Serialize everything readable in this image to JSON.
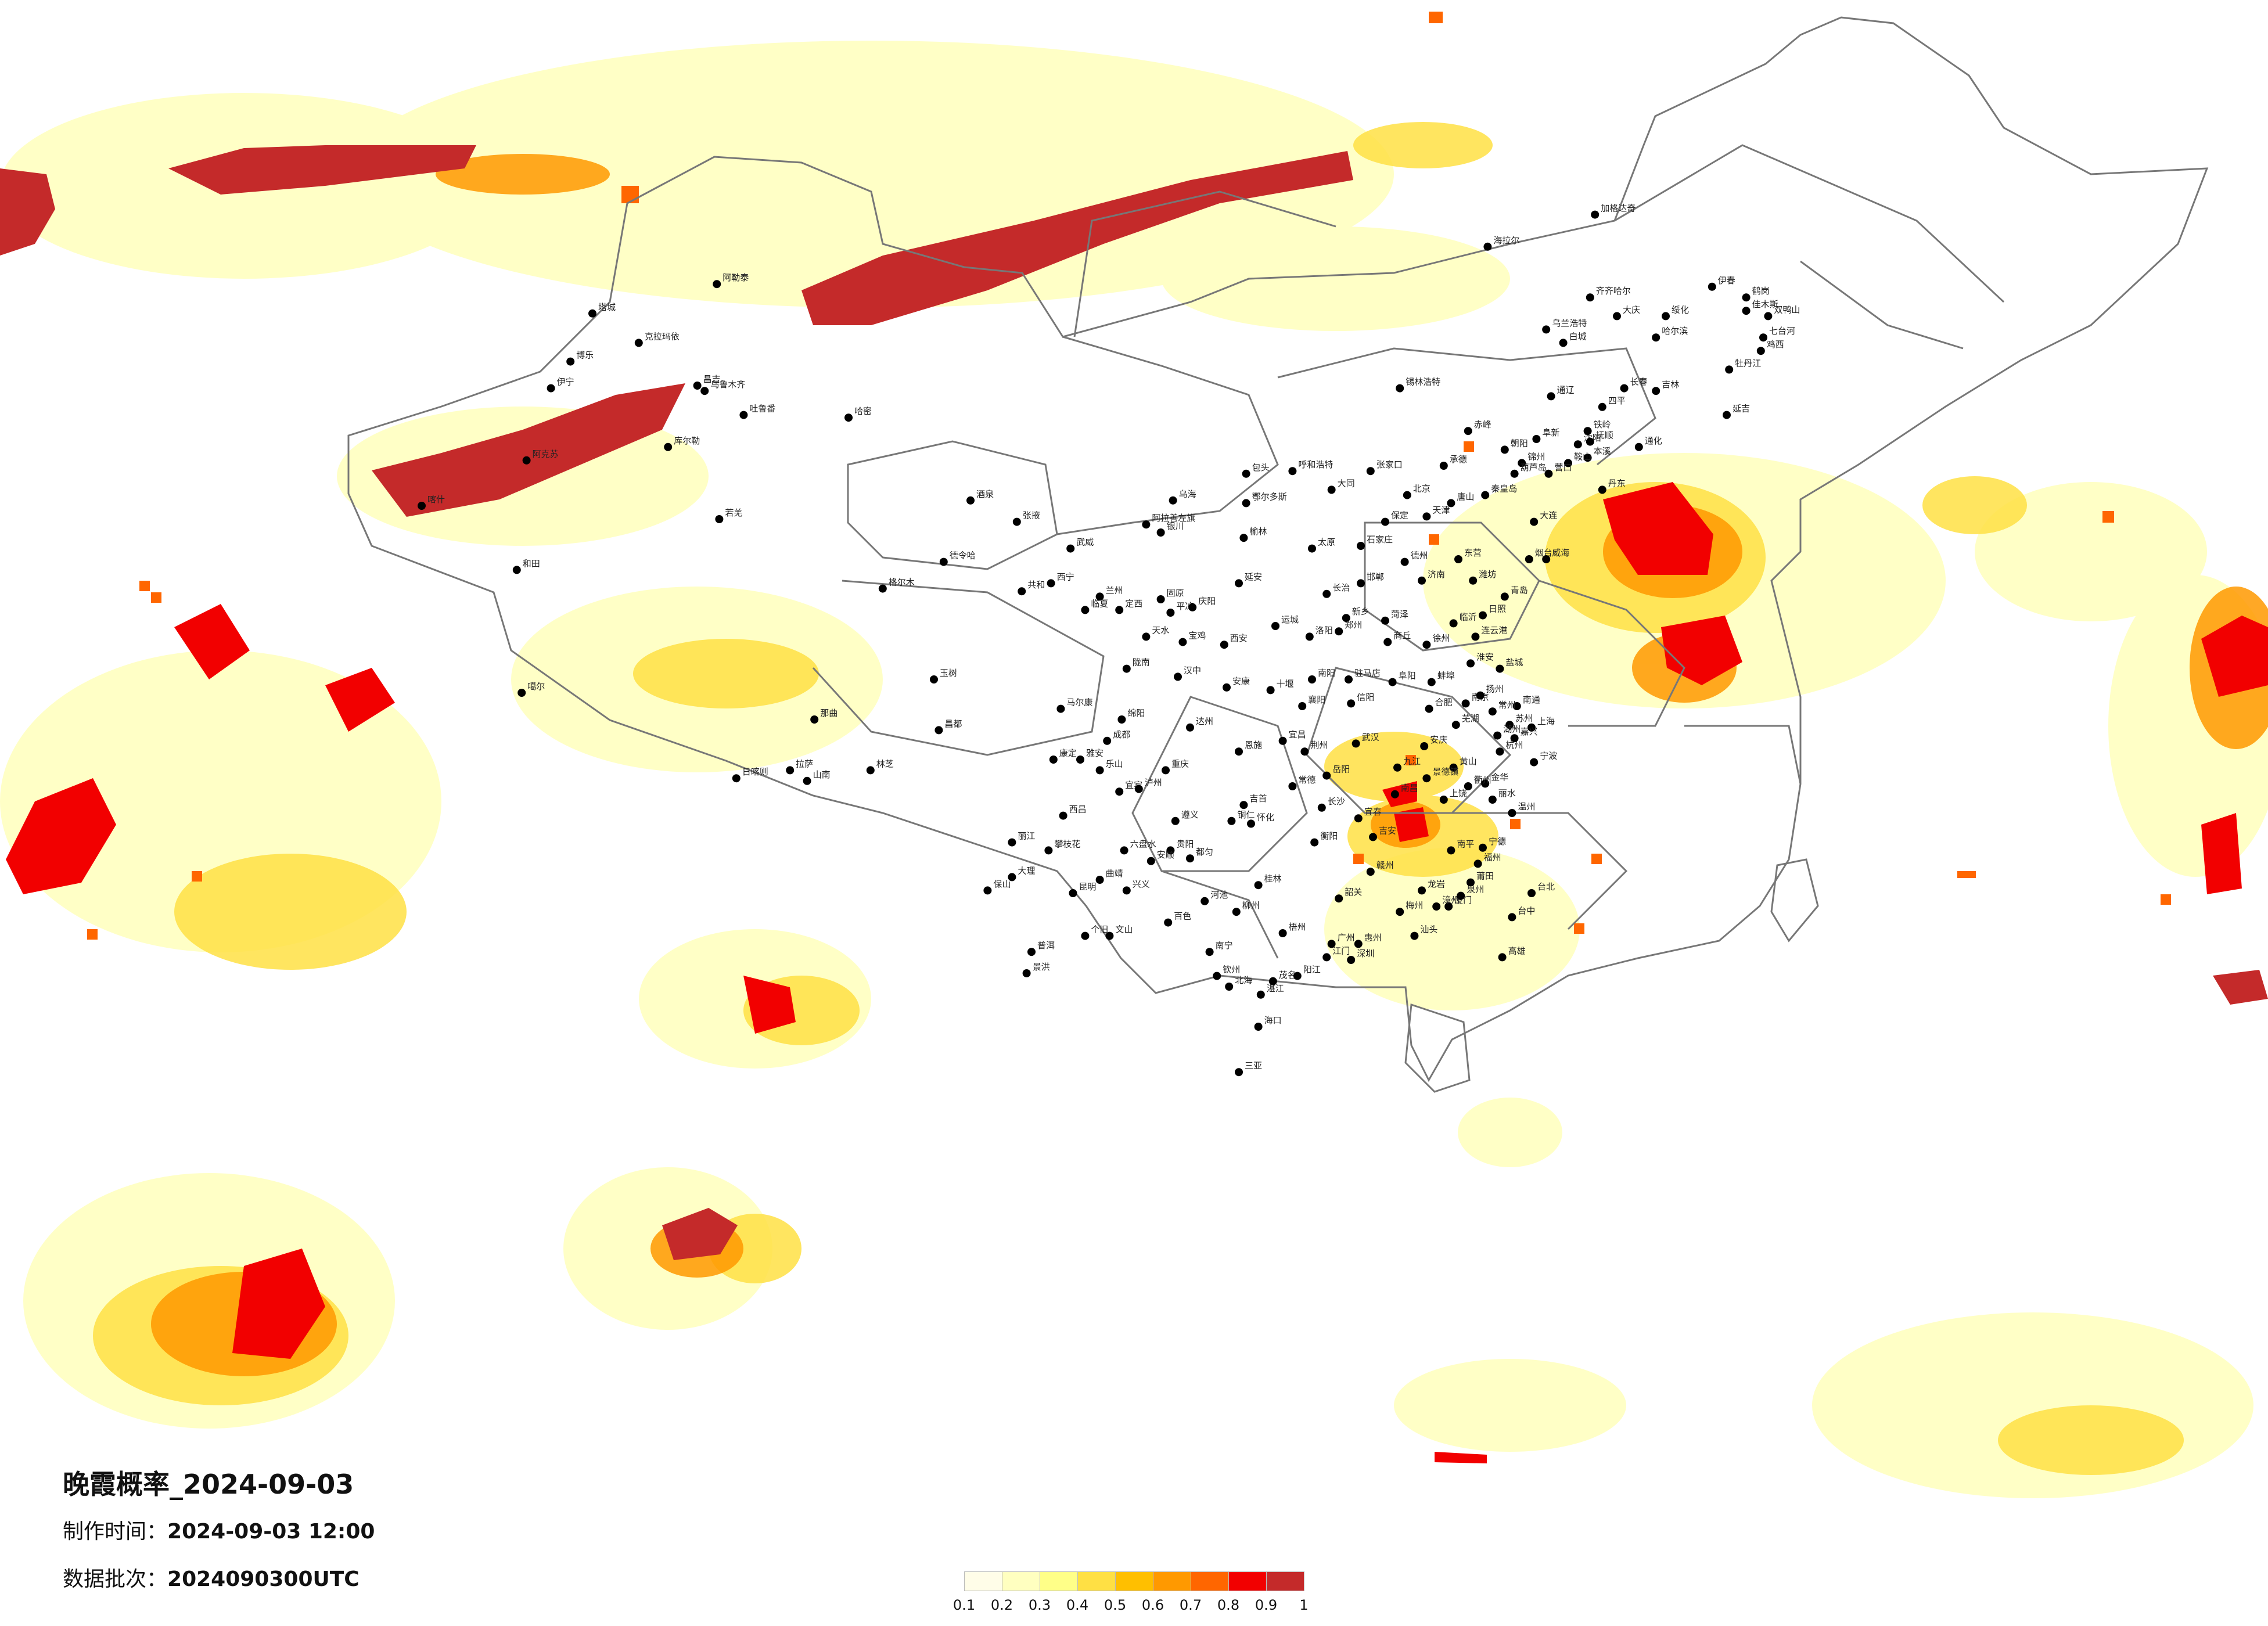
{
  "title": "晚霞概率_2024-09-03",
  "made_time_label": "制作时间：",
  "made_time_value": "2024-09-03 12:00",
  "batch_label": "数据批次：",
  "batch_value": "2024090300UTC",
  "legend": {
    "colors": [
      "#fffde8",
      "#ffffc0",
      "#ffff88",
      "#ffe044",
      "#ffbf00",
      "#ff9900",
      "#ff6600",
      "#f20000",
      "#c42a2a"
    ],
    "ticks": [
      "0.1",
      "0.2",
      "0.3",
      "0.4",
      "0.5",
      "0.6",
      "0.7",
      "0.8",
      "0.9",
      "1"
    ]
  },
  "cities": [
    {
      "name": "北京",
      "lon": 116.4,
      "lat": 39.9
    },
    {
      "name": "天津",
      "lon": 117.2,
      "lat": 39.1
    },
    {
      "name": "石家庄",
      "lon": 114.5,
      "lat": 38.0
    },
    {
      "name": "太原",
      "lon": 112.5,
      "lat": 37.9
    },
    {
      "name": "呼和浩特",
      "lon": 111.7,
      "lat": 40.8
    },
    {
      "name": "沈阳",
      "lon": 123.4,
      "lat": 41.8
    },
    {
      "name": "长春",
      "lon": 125.3,
      "lat": 43.9
    },
    {
      "name": "哈尔滨",
      "lon": 126.6,
      "lat": 45.8
    },
    {
      "name": "上海",
      "lon": 121.5,
      "lat": 31.2
    },
    {
      "name": "南京",
      "lon": 118.8,
      "lat": 32.1
    },
    {
      "name": "杭州",
      "lon": 120.2,
      "lat": 30.3
    },
    {
      "name": "合肥",
      "lon": 117.3,
      "lat": 31.9
    },
    {
      "name": "福州",
      "lon": 119.3,
      "lat": 26.1
    },
    {
      "name": "南昌",
      "lon": 115.9,
      "lat": 28.7
    },
    {
      "name": "济南",
      "lon": 117.0,
      "lat": 36.7
    },
    {
      "name": "郑州",
      "lon": 113.6,
      "lat": 34.8
    },
    {
      "name": "武汉",
      "lon": 114.3,
      "lat": 30.6
    },
    {
      "name": "长沙",
      "lon": 112.9,
      "lat": 28.2
    },
    {
      "name": "广州",
      "lon": 113.3,
      "lat": 23.1
    },
    {
      "name": "南宁",
      "lon": 108.3,
      "lat": 22.8
    },
    {
      "name": "海口",
      "lon": 110.3,
      "lat": 20.0
    },
    {
      "name": "重庆",
      "lon": 106.5,
      "lat": 29.6
    },
    {
      "name": "成都",
      "lon": 104.1,
      "lat": 30.7
    },
    {
      "name": "贵阳",
      "lon": 106.7,
      "lat": 26.6
    },
    {
      "name": "昆明",
      "lon": 102.7,
      "lat": 25.0
    },
    {
      "name": "拉萨",
      "lon": 91.1,
      "lat": 29.6
    },
    {
      "name": "西安",
      "lon": 108.9,
      "lat": 34.3
    },
    {
      "name": "兰州",
      "lon": 103.8,
      "lat": 36.1
    },
    {
      "name": "西宁",
      "lon": 101.8,
      "lat": 36.6
    },
    {
      "name": "银川",
      "lon": 106.3,
      "lat": 38.5
    },
    {
      "name": "乌鲁木齐",
      "lon": 87.6,
      "lat": 43.8
    },
    {
      "name": "喀什",
      "lon": 76.0,
      "lat": 39.5
    },
    {
      "name": "和田",
      "lon": 79.9,
      "lat": 37.1
    },
    {
      "name": "阿克苏",
      "lon": 80.3,
      "lat": 41.2
    },
    {
      "name": "伊宁",
      "lon": 81.3,
      "lat": 43.9
    },
    {
      "name": "克拉玛依",
      "lon": 84.9,
      "lat": 45.6
    },
    {
      "name": "哈密",
      "lon": 93.5,
      "lat": 42.8
    },
    {
      "name": "格尔木",
      "lon": 94.9,
      "lat": 36.4
    },
    {
      "name": "大连",
      "lon": 121.6,
      "lat": 38.9
    },
    {
      "name": "青岛",
      "lon": 120.4,
      "lat": 36.1
    },
    {
      "name": "厦门",
      "lon": 118.1,
      "lat": 24.5
    },
    {
      "name": "深圳",
      "lon": 114.1,
      "lat": 22.5
    },
    {
      "name": "三亚",
      "lon": 109.5,
      "lat": 18.3
    },
    {
      "name": "台北",
      "lon": 121.5,
      "lat": 25.0
    },
    {
      "name": "台中",
      "lon": 120.7,
      "lat": 24.1
    },
    {
      "name": "高雄",
      "lon": 120.3,
      "lat": 22.6
    },
    {
      "name": "海拉尔",
      "lon": 119.7,
      "lat": 49.2
    },
    {
      "name": "加格达奇",
      "lon": 124.1,
      "lat": 50.4
    },
    {
      "name": "齐齐哈尔",
      "lon": 123.9,
      "lat": 47.3
    },
    {
      "name": "佳木斯",
      "lon": 130.3,
      "lat": 46.8
    },
    {
      "name": "牡丹江",
      "lon": 129.6,
      "lat": 44.6
    },
    {
      "name": "延吉",
      "lon": 129.5,
      "lat": 42.9
    },
    {
      "name": "锡林浩特",
      "lon": 116.1,
      "lat": 43.9
    },
    {
      "name": "包头",
      "lon": 109.8,
      "lat": 40.7
    },
    {
      "name": "大同",
      "lon": 113.3,
      "lat": 40.1
    },
    {
      "name": "延安",
      "lon": 109.5,
      "lat": 36.6
    },
    {
      "name": "汉中",
      "lon": 107.0,
      "lat": 33.1
    },
    {
      "name": "宜昌",
      "lon": 111.3,
      "lat": 30.7
    },
    {
      "name": "桂林",
      "lon": 110.3,
      "lat": 25.3
    },
    {
      "name": "赣州",
      "lon": 114.9,
      "lat": 25.8
    },
    {
      "name": "徐州",
      "lon": 117.2,
      "lat": 34.3
    },
    {
      "name": "连云港",
      "lon": 119.2,
      "lat": 34.6
    },
    {
      "name": "烟台",
      "lon": 121.4,
      "lat": 37.5
    },
    {
      "name": "威海",
      "lon": 122.1,
      "lat": 37.5
    },
    {
      "name": "大理",
      "lon": 100.2,
      "lat": 25.6
    },
    {
      "name": "丽江",
      "lon": 100.2,
      "lat": 26.9
    },
    {
      "name": "西昌",
      "lon": 102.3,
      "lat": 27.9
    },
    {
      "name": "康定",
      "lon": 101.9,
      "lat": 30.0
    },
    {
      "name": "日喀则",
      "lon": 88.9,
      "lat": 29.3
    },
    {
      "name": "林芝",
      "lon": 94.4,
      "lat": 29.6
    },
    {
      "name": "昌都",
      "lon": 97.2,
      "lat": 31.1
    },
    {
      "name": "那曲",
      "lon": 92.1,
      "lat": 31.5
    },
    {
      "name": "玉树",
      "lon": 97.0,
      "lat": 33.0
    },
    {
      "name": "酒泉",
      "lon": 98.5,
      "lat": 39.7
    },
    {
      "name": "张掖",
      "lon": 100.4,
      "lat": 38.9
    },
    {
      "name": "武威",
      "lon": 102.6,
      "lat": 37.9
    },
    {
      "name": "天水",
      "lon": 105.7,
      "lat": 34.6
    },
    {
      "name": "九江",
      "lon": 116.0,
      "lat": 29.7
    },
    {
      "name": "温州",
      "lon": 120.7,
      "lat": 28.0
    },
    {
      "name": "宁波",
      "lon": 121.6,
      "lat": 29.9
    },
    {
      "name": "湛江",
      "lon": 110.4,
      "lat": 21.2
    },
    {
      "name": "北海",
      "lon": 109.1,
      "lat": 21.5
    },
    {
      "name": "百色",
      "lon": 106.6,
      "lat": 23.9
    },
    {
      "name": "遵义",
      "lon": 106.9,
      "lat": 27.7
    },
    {
      "name": "六盘水",
      "lon": 104.8,
      "lat": 26.6
    },
    {
      "name": "曲靖",
      "lon": 103.8,
      "lat": 25.5
    },
    {
      "name": "绵阳",
      "lon": 104.7,
      "lat": 31.5
    },
    {
      "name": "达州",
      "lon": 107.5,
      "lat": 31.2
    },
    {
      "name": "常德",
      "lon": 111.7,
      "lat": 29.0
    },
    {
      "name": "衡阳",
      "lon": 112.6,
      "lat": 26.9
    },
    {
      "name": "洛阳",
      "lon": 112.4,
      "lat": 34.6
    },
    {
      "name": "南阳",
      "lon": 112.5,
      "lat": 33.0
    },
    {
      "name": "临沂",
      "lon": 118.3,
      "lat": 35.1
    },
    {
      "name": "丹东",
      "lon": 124.4,
      "lat": 40.1
    },
    {
      "name": "通辽",
      "lon": 122.3,
      "lat": 43.6
    },
    {
      "name": "赤峰",
      "lon": 118.9,
      "lat": 42.3
    },
    {
      "name": "张家口",
      "lon": 114.9,
      "lat": 40.8
    },
    {
      "name": "承德",
      "lon": 117.9,
      "lat": 41.0
    },
    {
      "name": "秦皇岛",
      "lon": 119.6,
      "lat": 39.9
    },
    {
      "name": "唐山",
      "lon": 118.2,
      "lat": 39.6
    },
    {
      "name": "保定",
      "lon": 115.5,
      "lat": 38.9
    },
    {
      "name": "邯郸",
      "lon": 114.5,
      "lat": 36.6
    },
    {
      "name": "长治",
      "lon": 113.1,
      "lat": 36.2
    },
    {
      "name": "运城",
      "lon": 111.0,
      "lat": 35.0
    },
    {
      "name": "阜阳",
      "lon": 115.8,
      "lat": 32.9
    },
    {
      "name": "安庆",
      "lon": 117.1,
      "lat": 30.5
    },
    {
      "name": "黄山",
      "lon": 118.3,
      "lat": 29.7
    },
    {
      "name": "金华",
      "lon": 119.6,
      "lat": 29.1
    },
    {
      "name": "丽水",
      "lon": 119.9,
      "lat": 28.5
    },
    {
      "name": "南平",
      "lon": 118.2,
      "lat": 26.6
    },
    {
      "name": "龙岩",
      "lon": 117.0,
      "lat": 25.1
    },
    {
      "name": "梅州",
      "lon": 116.1,
      "lat": 24.3
    },
    {
      "name": "汕头",
      "lon": 116.7,
      "lat": 23.4
    },
    {
      "name": "韶关",
      "lon": 113.6,
      "lat": 24.8
    },
    {
      "name": "茂名",
      "lon": 110.9,
      "lat": 21.7
    },
    {
      "name": "钦州",
      "lon": 108.6,
      "lat": 21.9
    },
    {
      "name": "柳州",
      "lon": 109.4,
      "lat": 24.3
    },
    {
      "name": "怀化",
      "lon": 110.0,
      "lat": 27.6
    },
    {
      "name": "吉首",
      "lon": 109.7,
      "lat": 28.3
    },
    {
      "name": "恩施",
      "lon": 109.5,
      "lat": 30.3
    },
    {
      "name": "十堰",
      "lon": 110.8,
      "lat": 32.6
    },
    {
      "name": "襄阳",
      "lon": 112.1,
      "lat": 32.0
    },
    {
      "name": "荆州",
      "lon": 112.2,
      "lat": 30.3
    },
    {
      "name": "岳阳",
      "lon": 113.1,
      "lat": 29.4
    },
    {
      "name": "上饶",
      "lon": 117.9,
      "lat": 28.5
    },
    {
      "name": "吉安",
      "lon": 115.0,
      "lat": 27.1
    },
    {
      "name": "宜春",
      "lon": 114.4,
      "lat": 27.8
    },
    {
      "name": "景德镇",
      "lon": 117.2,
      "lat": 29.3
    },
    {
      "name": "芜湖",
      "lon": 118.4,
      "lat": 31.3
    },
    {
      "name": "蚌埠",
      "lon": 117.4,
      "lat": 32.9
    },
    {
      "name": "淮安",
      "lon": 119.0,
      "lat": 33.6
    },
    {
      "name": "盐城",
      "lon": 120.2,
      "lat": 33.4
    },
    {
      "name": "南通",
      "lon": 120.9,
      "lat": 32.0
    },
    {
      "name": "苏州",
      "lon": 120.6,
      "lat": 31.3
    },
    {
      "name": "日照",
      "lon": 119.5,
      "lat": 35.4
    },
    {
      "name": "潍坊",
      "lon": 119.1,
      "lat": 36.7
    },
    {
      "name": "东营",
      "lon": 118.5,
      "lat": 37.5
    },
    {
      "name": "德州",
      "lon": 116.3,
      "lat": 37.4
    },
    {
      "name": "菏泽",
      "lon": 115.5,
      "lat": 35.2
    },
    {
      "name": "商丘",
      "lon": 115.6,
      "lat": 34.4
    },
    {
      "name": "信阳",
      "lon": 114.1,
      "lat": 32.1
    },
    {
      "name": "驻马店",
      "lon": 114.0,
      "lat": 33.0
    },
    {
      "name": "新乡",
      "lon": 113.9,
      "lat": 35.3
    },
    {
      "name": "宝鸡",
      "lon": 107.2,
      "lat": 34.4
    },
    {
      "name": "安康",
      "lon": 109.0,
      "lat": 32.7
    },
    {
      "name": "榆林",
      "lon": 109.7,
      "lat": 38.3
    },
    {
      "name": "鄂尔多斯",
      "lon": 109.8,
      "lat": 39.6
    },
    {
      "name": "乌海",
      "lon": 106.8,
      "lat": 39.7
    },
    {
      "name": "阿拉善左旗",
      "lon": 105.7,
      "lat": 38.8
    },
    {
      "name": "固原",
      "lon": 106.3,
      "lat": 36.0
    },
    {
      "name": "平凉",
      "lon": 106.7,
      "lat": 35.5
    },
    {
      "name": "庆阳",
      "lon": 107.6,
      "lat": 35.7
    },
    {
      "name": "定西",
      "lon": 104.6,
      "lat": 35.6
    },
    {
      "name": "陇南",
      "lon": 104.9,
      "lat": 33.4
    },
    {
      "name": "临夏",
      "lon": 103.2,
      "lat": 35.6
    },
    {
      "name": "共和",
      "lon": 100.6,
      "lat": 36.3
    },
    {
      "name": "德令哈",
      "lon": 97.4,
      "lat": 37.4
    },
    {
      "name": "马尔康",
      "lon": 102.2,
      "lat": 31.9
    },
    {
      "name": "雅安",
      "lon": 103.0,
      "lat": 30.0
    },
    {
      "name": "乐山",
      "lon": 103.8,
      "lat": 29.6
    },
    {
      "name": "宜宾",
      "lon": 104.6,
      "lat": 28.8
    },
    {
      "name": "泸州",
      "lon": 105.4,
      "lat": 28.9
    },
    {
      "name": "攀枝花",
      "lon": 101.7,
      "lat": 26.6
    },
    {
      "name": "保山",
      "lon": 99.2,
      "lat": 25.1
    },
    {
      "name": "普洱",
      "lon": 101.0,
      "lat": 22.8
    },
    {
      "name": "景洪",
      "lon": 100.8,
      "lat": 22.0
    },
    {
      "name": "文山",
      "lon": 104.2,
      "lat": 23.4
    },
    {
      "name": "个旧",
      "lon": 103.2,
      "lat": 23.4
    },
    {
      "name": "兴义",
      "lon": 104.9,
      "lat": 25.1
    },
    {
      "name": "安顺",
      "lon": 105.9,
      "lat": 26.2
    },
    {
      "name": "铜仁",
      "lon": 109.2,
      "lat": 27.7
    },
    {
      "name": "都匀",
      "lon": 107.5,
      "lat": 26.3
    },
    {
      "name": "河池",
      "lon": 108.1,
      "lat": 24.7
    },
    {
      "name": "梧州",
      "lon": 111.3,
      "lat": 23.5
    },
    {
      "name": "阳江",
      "lon": 111.9,
      "lat": 21.9
    },
    {
      "name": "江门",
      "lon": 113.1,
      "lat": 22.6
    },
    {
      "name": "惠州",
      "lon": 114.4,
      "lat": 23.1
    },
    {
      "name": "漳州",
      "lon": 117.6,
      "lat": 24.5
    },
    {
      "name": "泉州",
      "lon": 118.6,
      "lat": 24.9
    },
    {
      "name": "莆田",
      "lon": 119.0,
      "lat": 25.4
    },
    {
      "name": "宁德",
      "lon": 119.5,
      "lat": 26.7
    },
    {
      "name": "衢州",
      "lon": 118.9,
      "lat": 29.0
    },
    {
      "name": "嘉兴",
      "lon": 120.8,
      "lat": 30.8
    },
    {
      "name": "湖州",
      "lon": 120.1,
      "lat": 30.9
    },
    {
      "name": "常州",
      "lon": 119.9,
      "lat": 31.8
    },
    {
      "name": "扬州",
      "lon": 119.4,
      "lat": 32.4
    },
    {
      "name": "伊春",
      "lon": 128.9,
      "lat": 47.7
    },
    {
      "name": "鹤岗",
      "lon": 130.3,
      "lat": 47.3
    },
    {
      "name": "双鸭山",
      "lon": 131.2,
      "lat": 46.6
    },
    {
      "name": "七台河",
      "lon": 131.0,
      "lat": 45.8
    },
    {
      "name": "鸡西",
      "lon": 130.9,
      "lat": 45.3
    },
    {
      "name": "绥化",
      "lon": 127.0,
      "lat": 46.6
    },
    {
      "name": "大庆",
      "lon": 125.0,
      "lat": 46.6
    },
    {
      "name": "乌兰浩特",
      "lon": 122.1,
      "lat": 46.1
    },
    {
      "name": "白城",
      "lon": 122.8,
      "lat": 45.6
    },
    {
      "name": "四平",
      "lon": 124.4,
      "lat": 43.2
    },
    {
      "name": "吉林",
      "lon": 126.6,
      "lat": 43.8
    },
    {
      "name": "通化",
      "lon": 125.9,
      "lat": 41.7
    },
    {
      "name": "铁岭",
      "lon": 123.8,
      "lat": 42.3
    },
    {
      "name": "抚顺",
      "lon": 123.9,
      "lat": 41.9
    },
    {
      "name": "本溪",
      "lon": 123.8,
      "lat": 41.3
    },
    {
      "name": "鞍山",
      "lon": 123.0,
      "lat": 41.1
    },
    {
      "name": "营口",
      "lon": 122.2,
      "lat": 40.7
    },
    {
      "name": "锦州",
      "lon": 121.1,
      "lat": 41.1
    },
    {
      "name": "阜新",
      "lon": 121.7,
      "lat": 42.0
    },
    {
      "name": "朝阳",
      "lon": 120.4,
      "lat": 41.6
    },
    {
      "name": "葫芦岛",
      "lon": 120.8,
      "lat": 40.7
    },
    {
      "name": "博乐",
      "lon": 82.1,
      "lat": 44.9
    },
    {
      "name": "昌吉",
      "lon": 87.3,
      "lat": 44.0
    },
    {
      "name": "吐鲁番",
      "lon": 89.2,
      "lat": 42.9
    },
    {
      "name": "库尔勒",
      "lon": 86.1,
      "lat": 41.7
    },
    {
      "name": "塔城",
      "lon": 83.0,
      "lat": 46.7
    },
    {
      "name": "阿勒泰",
      "lon": 88.1,
      "lat": 47.8
    },
    {
      "name": "若羌",
      "lon": 88.2,
      "lat": 39.0
    },
    {
      "name": "噶尔",
      "lon": 80.1,
      "lat": 32.5
    },
    {
      "name": "山南",
      "lon": 91.8,
      "lat": 29.2
    }
  ]
}
